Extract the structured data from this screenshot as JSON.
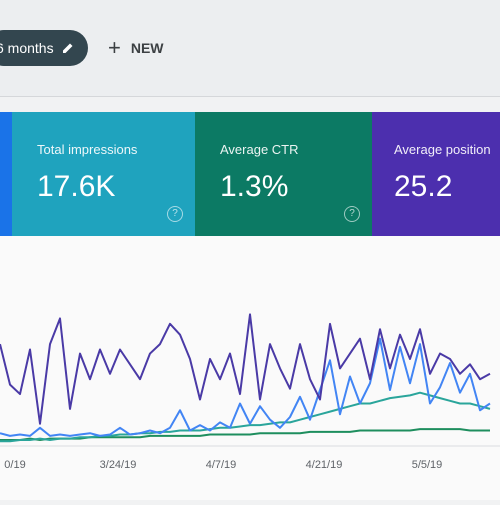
{
  "header": {
    "filter_chip": "6 months",
    "new_button": "NEW"
  },
  "metrics": [
    {
      "label": "Total impressions",
      "value": "17.6K",
      "color": "#1fa3be"
    },
    {
      "label": "Average CTR",
      "value": "1.3%",
      "color": "#0c7a64"
    },
    {
      "label": "Average position",
      "value": "25.2",
      "color": "#4c2fae"
    }
  ],
  "chart_data": {
    "type": "line",
    "xtick_labels": [
      "0/19",
      "3/24/19",
      "4/7/19",
      "4/21/19",
      "5/5/19"
    ],
    "series": [
      {
        "color": "#4a3aa6",
        "values": [
          74,
          44,
          37,
          70,
          15,
          74,
          93,
          26,
          67,
          48,
          70,
          52,
          70,
          59,
          48,
          67,
          74,
          89,
          81,
          63,
          33,
          63,
          48,
          67,
          37,
          96,
          33,
          74,
          56,
          41,
          74,
          48,
          33,
          89,
          56,
          67,
          78,
          48,
          85,
          56,
          81,
          63,
          85,
          52,
          67,
          63,
          52,
          59,
          48,
          52
        ]
      },
      {
        "color": "#4285f4",
        "values": [
          8,
          6,
          7,
          6,
          12,
          6,
          7,
          6,
          7,
          8,
          6,
          7,
          12,
          7,
          8,
          10,
          8,
          12,
          25,
          10,
          14,
          10,
          16,
          12,
          30,
          15,
          28,
          18,
          12,
          20,
          35,
          18,
          40,
          62,
          22,
          50,
          30,
          45,
          78,
          40,
          72,
          45,
          74,
          30,
          42,
          60,
          38,
          52,
          25,
          30
        ]
      },
      {
        "color": "#2aa59b",
        "values": [
          2,
          2,
          3,
          3,
          4,
          3,
          4,
          4,
          5,
          5,
          6,
          6,
          7,
          7,
          8,
          8,
          9,
          9,
          10,
          10,
          10,
          11,
          12,
          12,
          13,
          14,
          14,
          15,
          16,
          16,
          18,
          20,
          22,
          24,
          26,
          28,
          30,
          30,
          32,
          34,
          35,
          36,
          38,
          36,
          34,
          32,
          30,
          30,
          28,
          26
        ]
      },
      {
        "color": "#1e8e5e",
        "values": [
          3,
          3,
          3,
          4,
          3,
          4,
          4,
          4,
          4,
          5,
          5,
          5,
          5,
          5,
          5,
          6,
          6,
          6,
          6,
          6,
          6,
          7,
          7,
          7,
          7,
          7,
          8,
          8,
          8,
          8,
          8,
          9,
          9,
          9,
          9,
          9,
          10,
          10,
          10,
          10,
          10,
          10,
          11,
          11,
          11,
          11,
          11,
          10,
          10,
          10
        ]
      }
    ]
  }
}
